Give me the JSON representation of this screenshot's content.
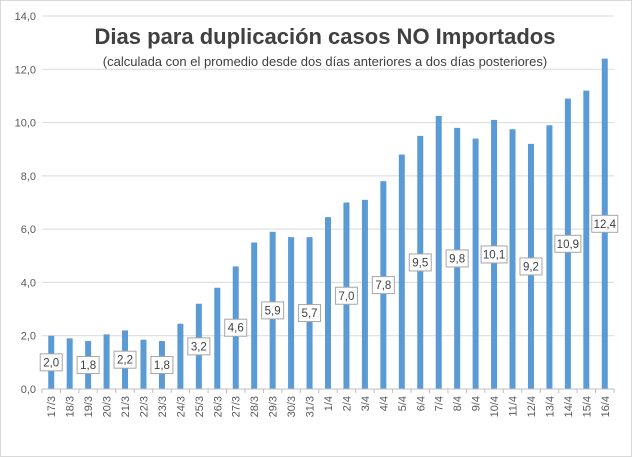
{
  "chart_data": {
    "type": "bar",
    "title": "Dias para duplicación casos NO Importados",
    "subtitle": "(calculada con el promedio  desde dos días anteriores a dos días posteriores)",
    "xlabel": "",
    "ylabel": "",
    "ylim": [
      0,
      14
    ],
    "yticks": [
      "0,0",
      "2,0",
      "4,0",
      "6,0",
      "8,0",
      "10,0",
      "12,0",
      "14,0"
    ],
    "grid": true,
    "legend": "none",
    "bar_color": "#5b9bd5",
    "categories": [
      "17/3",
      "18/3",
      "19/3",
      "20/3",
      "21/3",
      "22/3",
      "23/3",
      "24/3",
      "25/3",
      "26/3",
      "27/3",
      "28/3",
      "29/3",
      "30/3",
      "31/3",
      "1/4",
      "2/4",
      "3/4",
      "4/4",
      "5/4",
      "6/4",
      "7/4",
      "8/4",
      "9/4",
      "10/4",
      "11/4",
      "12/4",
      "13/4",
      "14/4",
      "15/4",
      "16/4"
    ],
    "values": [
      2.0,
      1.9,
      1.8,
      2.05,
      2.2,
      1.85,
      1.8,
      2.45,
      3.2,
      3.8,
      4.6,
      5.5,
      5.9,
      5.7,
      5.7,
      6.45,
      7.0,
      7.1,
      7.8,
      8.8,
      9.5,
      10.25,
      9.8,
      9.4,
      10.1,
      9.75,
      9.2,
      9.9,
      10.9,
      11.2,
      12.4
    ],
    "data_labels": [
      {
        "index": 0,
        "text": "2,0"
      },
      {
        "index": 2,
        "text": "1,8"
      },
      {
        "index": 4,
        "text": "2,2"
      },
      {
        "index": 6,
        "text": "1,8"
      },
      {
        "index": 8,
        "text": "3,2"
      },
      {
        "index": 10,
        "text": "4,6"
      },
      {
        "index": 12,
        "text": "5,9"
      },
      {
        "index": 14,
        "text": "5,7"
      },
      {
        "index": 16,
        "text": "7,0"
      },
      {
        "index": 18,
        "text": "7,8"
      },
      {
        "index": 20,
        "text": "9,5"
      },
      {
        "index": 22,
        "text": "9,8"
      },
      {
        "index": 24,
        "text": "10,1"
      },
      {
        "index": 26,
        "text": "9,2"
      },
      {
        "index": 28,
        "text": "10,9"
      },
      {
        "index": 30,
        "text": "12,4"
      }
    ]
  }
}
